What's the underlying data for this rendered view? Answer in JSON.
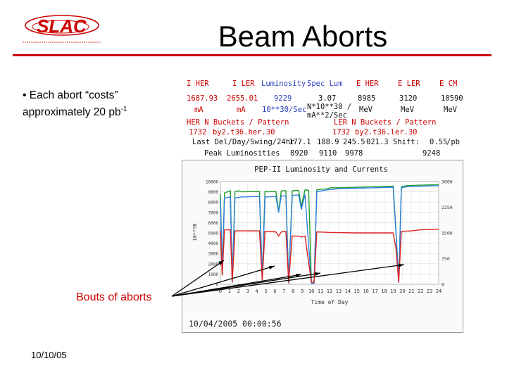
{
  "slide": {
    "title": "Beam Aborts",
    "bullet_main": "• Each abort “costs” approximately 20 pb",
    "bullet_sup": "-1",
    "callout": "Bouts of aborts",
    "footer_date": "10/10/05"
  },
  "logo": {
    "text": "SLAC",
    "color": "#cc0000"
  },
  "stats": {
    "headers": [
      "I HER",
      "I LER",
      "Luminosity",
      "Spec Lum",
      "E HER",
      "E LER",
      "E CM"
    ],
    "values": [
      "1687.93",
      "2655.01",
      "9229",
      "3.07",
      "8985",
      "3120",
      "10590"
    ],
    "units": [
      "mA",
      "mA",
      "10**30/Sec",
      "N*10**30 /",
      "MeV",
      "MeV",
      "MeV"
    ],
    "unit_extra": "mA**2/Sec",
    "her_label": "HER N Buckets / Pattern",
    "ler_label": "LER N Buckets / Pattern",
    "her_buckets": "1732",
    "her_pattern": "by2.t36.her.30",
    "ler_buckets": "1732",
    "ler_pattern": "by2.t36.ler.30",
    "last_del_label": "Last Del/Day/Swing/24hr",
    "last_del_values": [
      "177.1",
      "188.9",
      "245.5",
      "021.3"
    ],
    "shift_label": "Shift:",
    "shift_value": "0.55",
    "shift_unit": "/pb",
    "peak_label": "Peak Luminosities",
    "peak_values": [
      "8920",
      "9110",
      "9978",
      "9248"
    ]
  },
  "chart_data": {
    "type": "line",
    "title": "PEP-II Luminosity and Currents",
    "xlabel": "Time of Day",
    "ylabel": "10**30",
    "x_ticks": [
      "0",
      "1",
      "2",
      "3",
      "4",
      "5",
      "6",
      "7",
      "8",
      "9",
      "10",
      "11",
      "12",
      "13",
      "14",
      "15",
      "16",
      "17",
      "18",
      "19",
      "20",
      "21",
      "22",
      "23",
      "24"
    ],
    "xlim": [
      0,
      24
    ],
    "y_ticks_left": [
      "0",
      "1000",
      "2000",
      "3000",
      "4000",
      "5000",
      "6000",
      "7000",
      "8000",
      "9000",
      "10000"
    ],
    "ylim_left": [
      0,
      10000
    ],
    "y_ticks_right": [
      "0",
      "750",
      "1500",
      "2250",
      "3000"
    ],
    "ylim_right": [
      0,
      3000
    ],
    "timestamp": "10/04/2005 00:00:56",
    "colors": {
      "green": "#1e9e2e",
      "blue": "#2f7fe0",
      "red": "#dd2222"
    },
    "series": [
      {
        "color": "green",
        "points": [
          [
            0,
            8800
          ],
          [
            0.2,
            1200
          ],
          [
            0.45,
            8900
          ],
          [
            1.1,
            9100
          ],
          [
            1.3,
            300
          ],
          [
            1.6,
            9000
          ],
          [
            2.0,
            9100
          ],
          [
            2.3,
            9000
          ],
          [
            4.3,
            9050
          ],
          [
            4.6,
            600
          ],
          [
            4.9,
            9050
          ],
          [
            5.2,
            9000
          ],
          [
            6.1,
            9050
          ],
          [
            6.4,
            7100
          ],
          [
            6.7,
            9100
          ],
          [
            7.2,
            9100
          ],
          [
            7.5,
            200
          ],
          [
            7.9,
            9100
          ],
          [
            8.6,
            9150
          ],
          [
            8.9,
            7600
          ],
          [
            9.3,
            9200
          ],
          [
            9.7,
            9150
          ],
          [
            10.0,
            200
          ],
          [
            10.3,
            100
          ],
          [
            10.6,
            9200
          ],
          [
            11.8,
            9300
          ],
          [
            12.1,
            9400
          ],
          [
            13,
            9400
          ],
          [
            15,
            9450
          ],
          [
            17,
            9500
          ],
          [
            19,
            9550
          ],
          [
            19.3,
            5200
          ],
          [
            19.6,
            300
          ],
          [
            19.9,
            9500
          ],
          [
            20.5,
            9600
          ],
          [
            22,
            9650
          ],
          [
            24,
            9700
          ]
        ]
      },
      {
        "color": "blue",
        "points": [
          [
            0,
            8200
          ],
          [
            0.2,
            1000
          ],
          [
            0.45,
            8400
          ],
          [
            1.1,
            8500
          ],
          [
            1.3,
            200
          ],
          [
            1.6,
            8400
          ],
          [
            2.3,
            8500
          ],
          [
            4.3,
            8550
          ],
          [
            4.6,
            400
          ],
          [
            4.9,
            8500
          ],
          [
            6.1,
            8550
          ],
          [
            6.4,
            7000
          ],
          [
            6.7,
            8600
          ],
          [
            7.2,
            8600
          ],
          [
            7.5,
            100
          ],
          [
            7.9,
            8650
          ],
          [
            8.6,
            8700
          ],
          [
            8.9,
            7300
          ],
          [
            9.3,
            8750
          ],
          [
            10.0,
            100
          ],
          [
            10.3,
            100
          ],
          [
            10.6,
            9000
          ],
          [
            11.8,
            9200
          ],
          [
            13,
            9300
          ],
          [
            15,
            9350
          ],
          [
            17,
            9400
          ],
          [
            19,
            9450
          ],
          [
            19.3,
            5100
          ],
          [
            19.6,
            200
          ],
          [
            19.9,
            9400
          ],
          [
            20.5,
            9500
          ],
          [
            22,
            9550
          ],
          [
            24,
            9600
          ]
        ]
      },
      {
        "color": "red",
        "points": [
          [
            0,
            5200
          ],
          [
            0.2,
            900
          ],
          [
            0.45,
            5300
          ],
          [
            1.1,
            5300
          ],
          [
            1.3,
            200
          ],
          [
            1.6,
            5200
          ],
          [
            2.3,
            5200
          ],
          [
            4.3,
            5200
          ],
          [
            4.6,
            400
          ],
          [
            4.9,
            5150
          ],
          [
            6.1,
            5100
          ],
          [
            6.4,
            4700
          ],
          [
            6.7,
            5100
          ],
          [
            7.2,
            5150
          ],
          [
            7.5,
            200
          ],
          [
            7.9,
            4700
          ],
          [
            8.6,
            4700
          ],
          [
            8.9,
            4600
          ],
          [
            9.3,
            4700
          ],
          [
            10.0,
            200
          ],
          [
            10.3,
            200
          ],
          [
            10.6,
            5100
          ],
          [
            12,
            5050
          ],
          [
            15,
            5000
          ],
          [
            19,
            5000
          ],
          [
            19.3,
            3500
          ],
          [
            19.6,
            200
          ],
          [
            19.9,
            5150
          ],
          [
            21,
            5200
          ],
          [
            22,
            5300
          ],
          [
            24,
            5350
          ]
        ]
      }
    ]
  }
}
